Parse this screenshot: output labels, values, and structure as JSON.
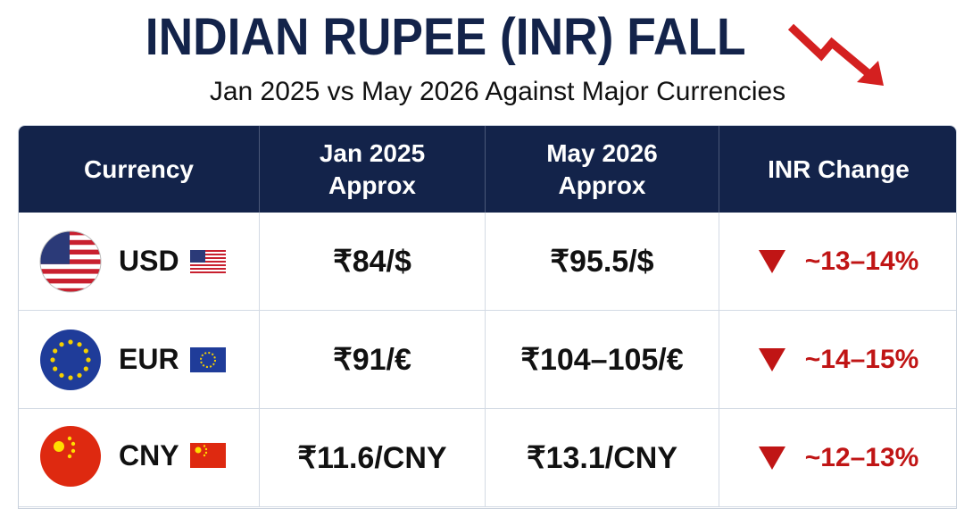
{
  "header": {
    "title": "INDIAN RUPEE (INR) FALL",
    "subtitle": "Jan 2025 vs May 2026 Against Major Currencies"
  },
  "table": {
    "columns": [
      "Currency",
      "Jan 2025 Approx",
      "May 2026 Approx",
      "INR Change"
    ],
    "rows": [
      [
        "USD",
        "₹84/$",
        "₹95.5/$",
        "~13–14%"
      ],
      [
        "EUR",
        "₹91/€",
        "₹104–105/€",
        "~14–15%"
      ],
      [
        "CNY",
        "₹11.6/CNY",
        "₹13.1/CNY",
        "~12–13%"
      ]
    ]
  }
}
